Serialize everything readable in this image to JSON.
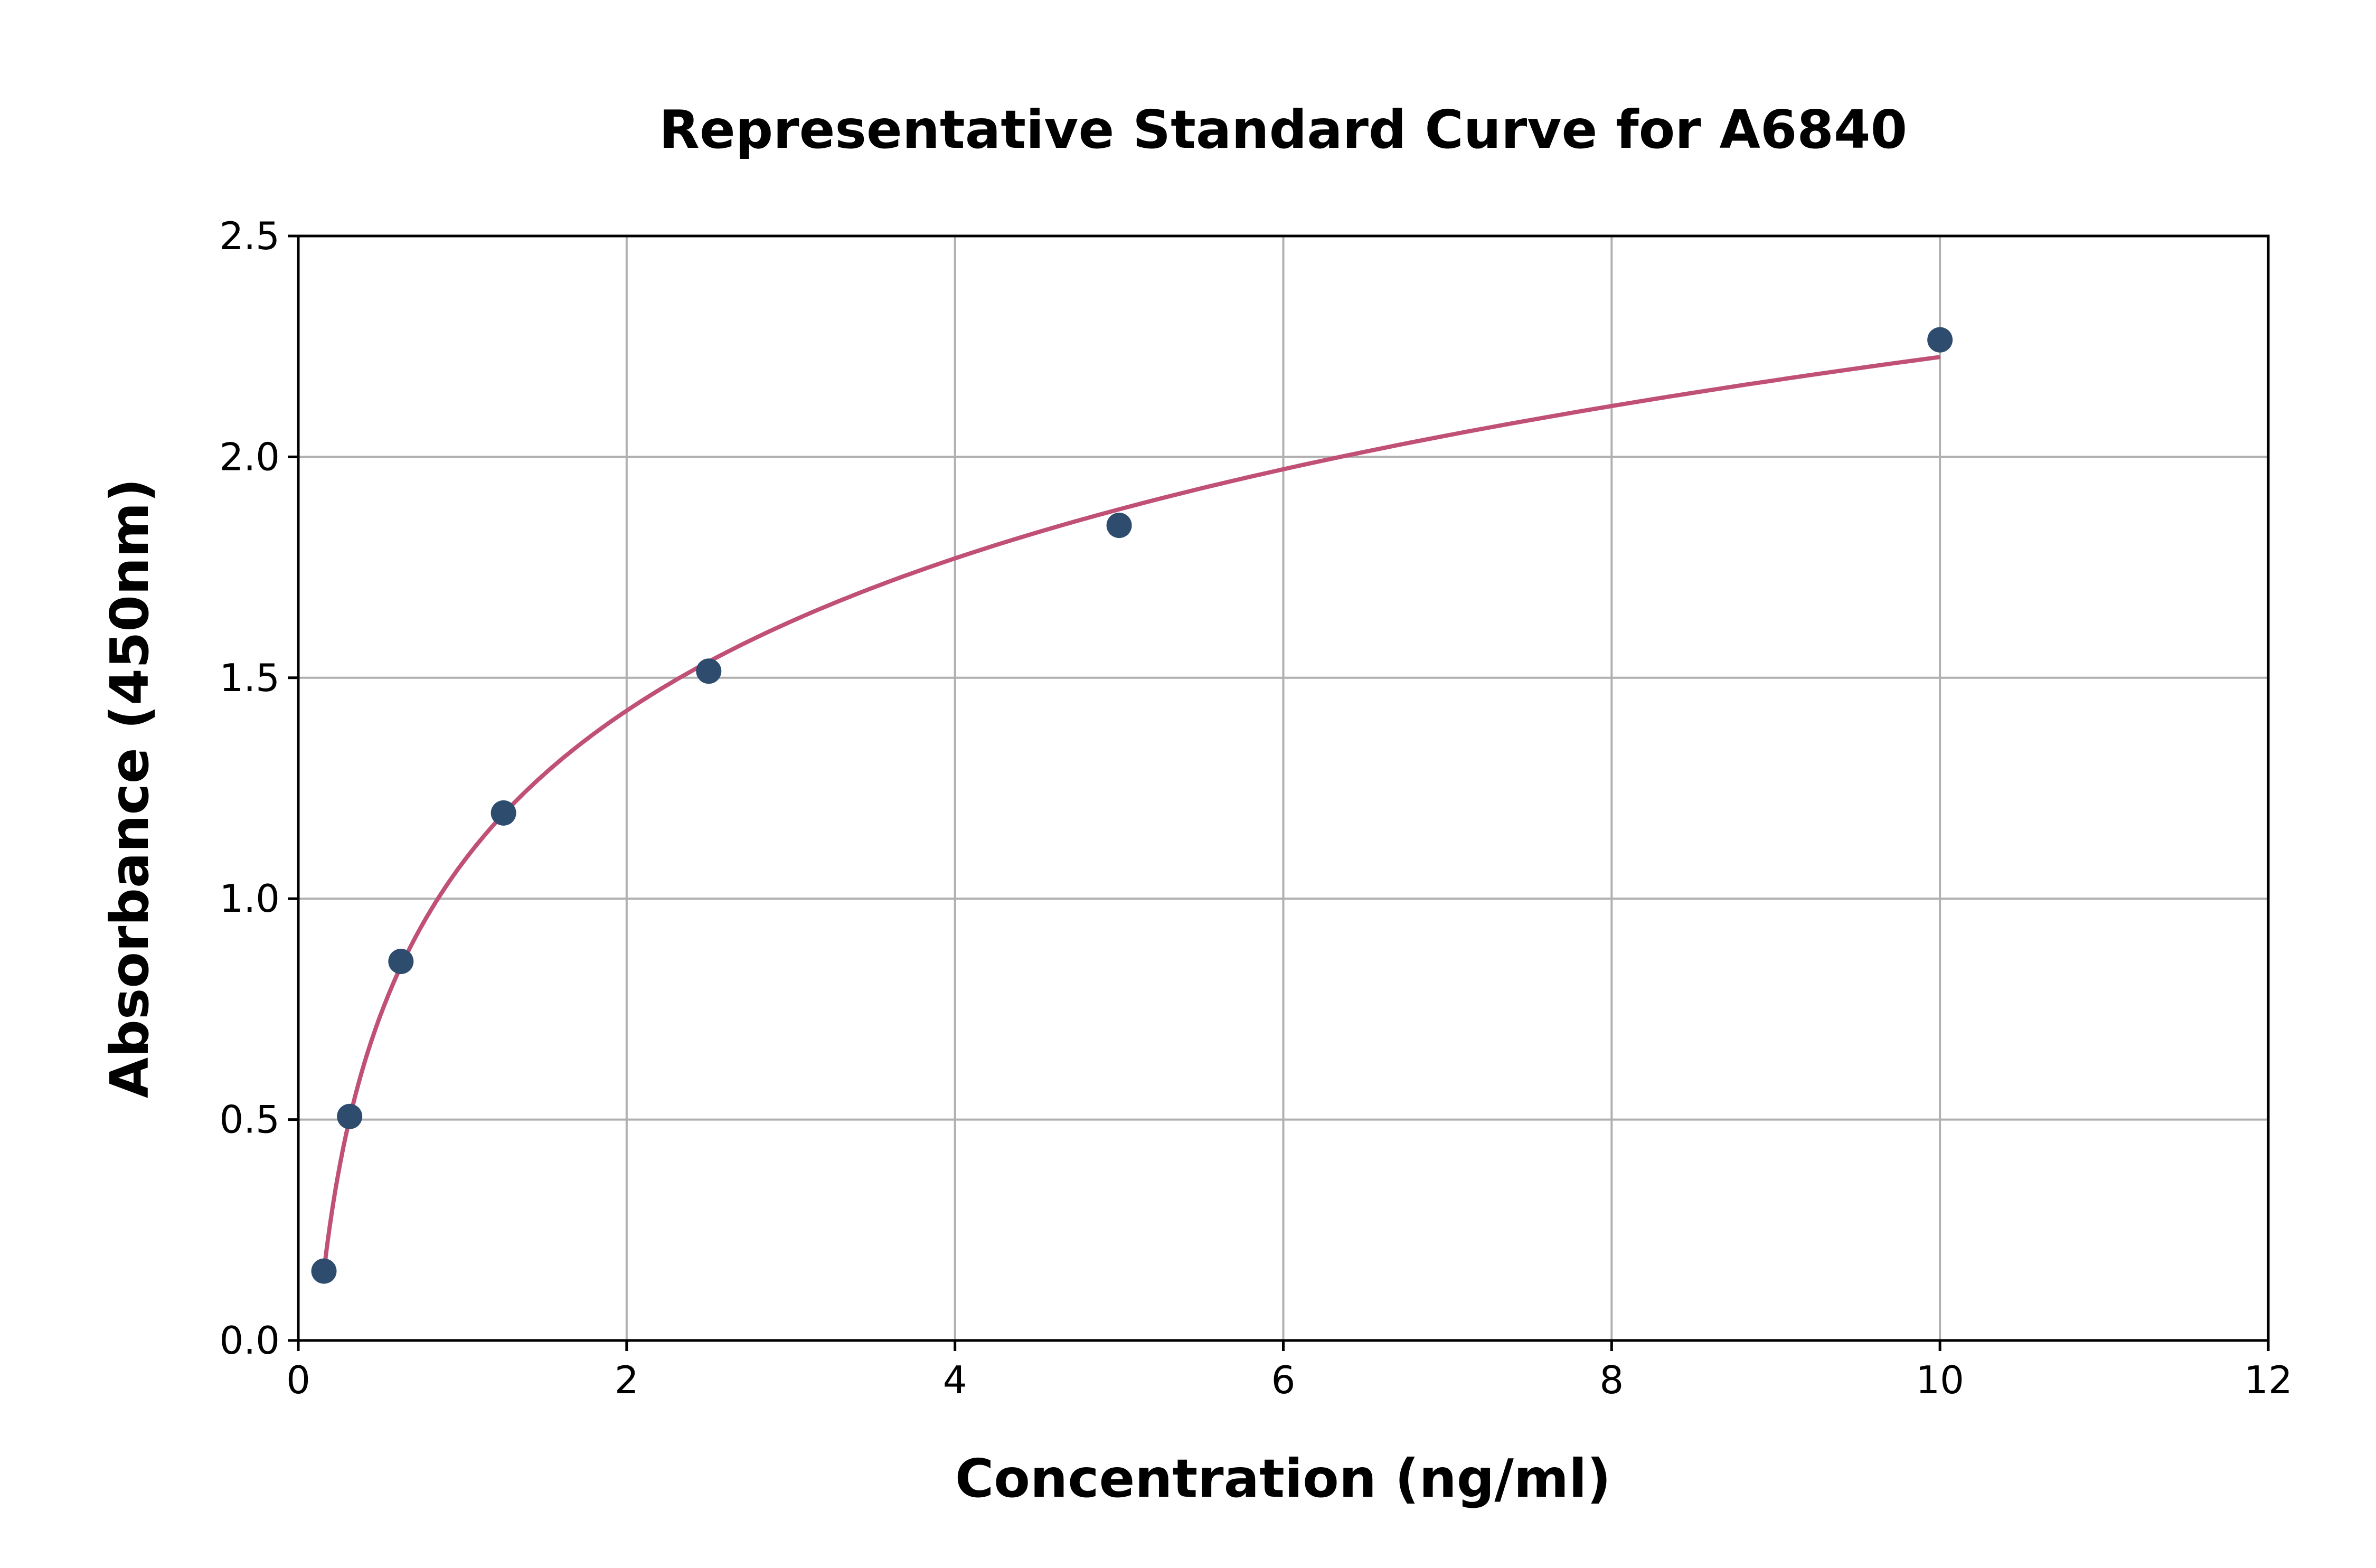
{
  "chart_data": {
    "type": "scatter",
    "title": "Representative Standard Curve for A6840",
    "xlabel": "Concentration (ng/ml)",
    "ylabel": "Absorbance (450nm)",
    "xlim": [
      0,
      12
    ],
    "ylim": [
      0,
      2.5
    ],
    "xticks": [
      "0",
      "2",
      "4",
      "6",
      "8",
      "10",
      "12"
    ],
    "yticks": [
      "0.0",
      "0.5",
      "1.0",
      "1.5",
      "2.0",
      "2.5"
    ],
    "grid": true,
    "x": [
      0.156,
      0.3125,
      0.625,
      1.25,
      2.5,
      5,
      10
    ],
    "y": [
      0.157,
      0.507,
      0.858,
      1.194,
      1.515,
      1.845,
      2.265
    ],
    "fit_curve": true,
    "colors": {
      "points": "#2e4d6e",
      "curve": "#c05075",
      "grid": "#b0b0b0"
    }
  }
}
